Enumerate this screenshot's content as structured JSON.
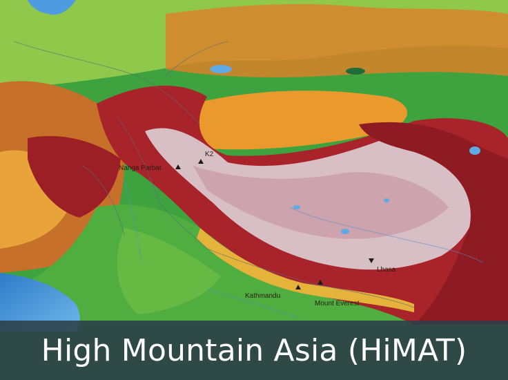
{
  "title": "High Mountain Asia (HiMAT)",
  "map": {
    "labels": {
      "kathmandu": "Kathmandu",
      "everest": "Mount Everest",
      "lhasa": "Lhasa",
      "nanga_parbat": "Nanga Parbat",
      "k2": "K2"
    },
    "colors": {
      "ocean": "#3f8fd6",
      "lowland": "#3ea33e",
      "plain": "#9ecf45",
      "plateau_orange": "#e79a2a",
      "highland_red": "#b3262a",
      "summit_white": "#e7dfe3",
      "lake_blue": "#5fa9e6"
    }
  }
}
